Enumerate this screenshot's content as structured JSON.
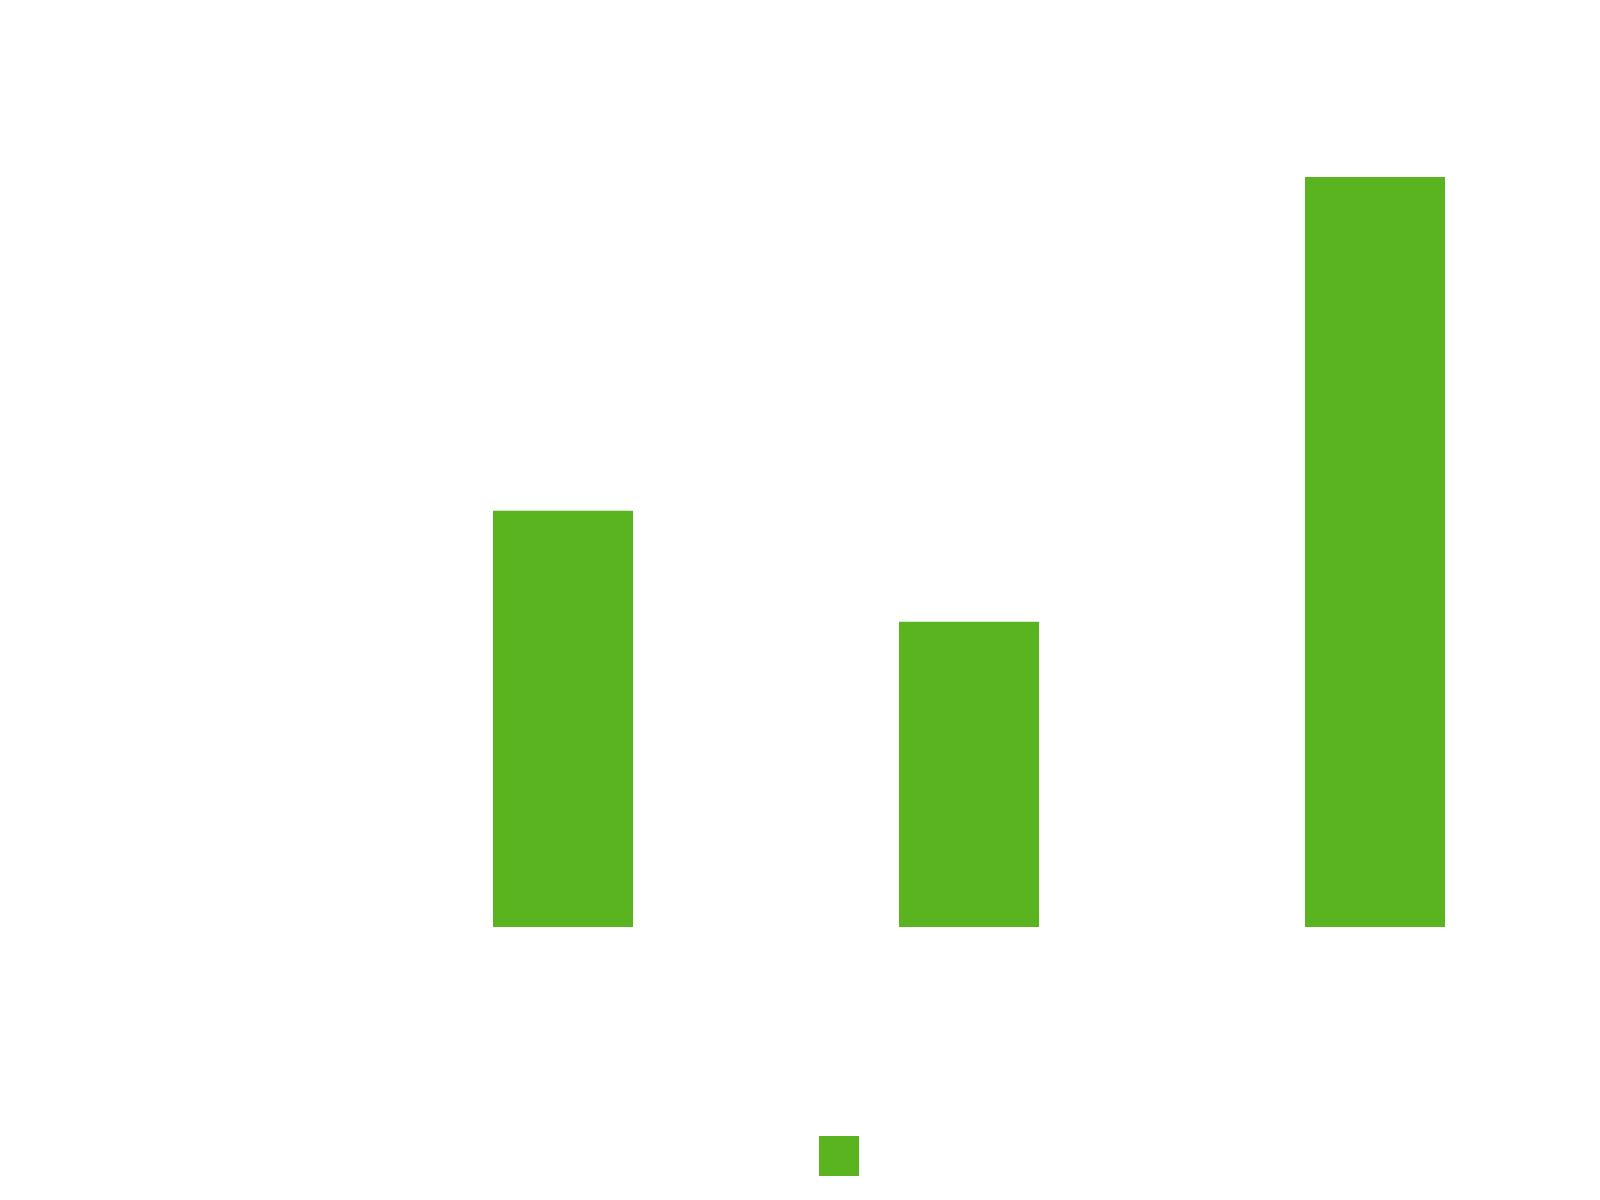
{
  "chart_data": {
    "type": "bar",
    "categories": [
      null,
      null,
      null,
      null
    ],
    "series": [
      {
        "color": "#59b41f",
        "values": [
          0,
          55.5,
          40.7,
          100
        ]
      }
    ],
    "ylim": [
      0,
      100
    ]
  }
}
